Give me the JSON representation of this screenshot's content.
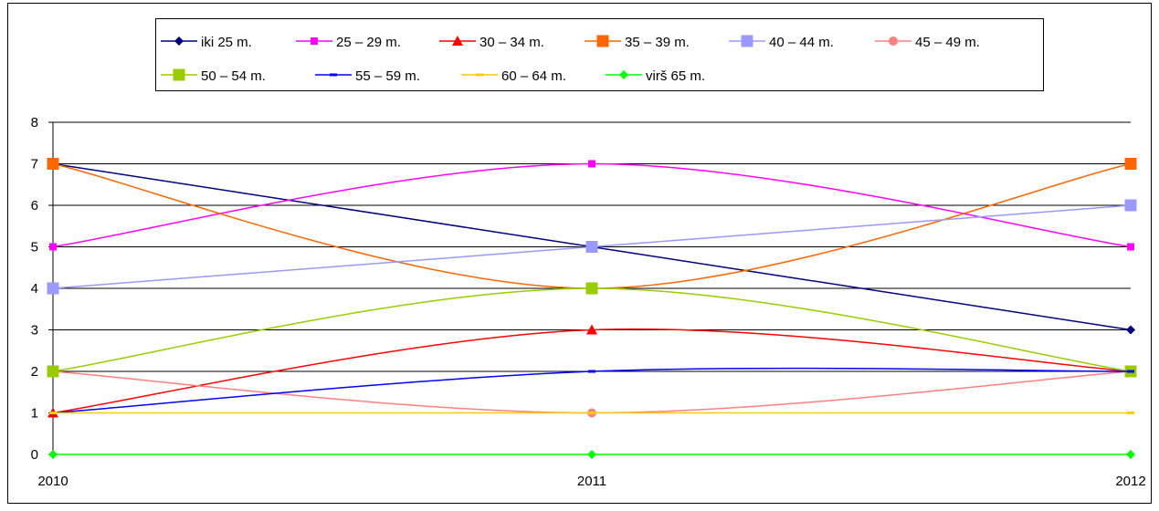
{
  "chart_data": {
    "type": "line",
    "x": [
      "2010",
      "2011",
      "2012"
    ],
    "ylim": [
      0,
      8
    ],
    "yticks": [
      "0",
      "1",
      "2",
      "3",
      "4",
      "5",
      "6",
      "7",
      "8"
    ],
    "grid": true,
    "legend_position": "top",
    "series": [
      {
        "name": "iki 25 m.",
        "values": [
          7,
          5,
          3
        ],
        "color": "#000080",
        "marker": "diamond"
      },
      {
        "name": "25 – 29 m.",
        "values": [
          5,
          7,
          5
        ],
        "color": "#ff00ff",
        "marker": "square-small"
      },
      {
        "name": "30 – 34 m.",
        "values": [
          1,
          3,
          2
        ],
        "color": "#ff0000",
        "marker": "triangle"
      },
      {
        "name": "35 – 39 m.",
        "values": [
          7,
          4,
          7
        ],
        "color": "#ff6600",
        "marker": "square"
      },
      {
        "name": "40 – 44 m.",
        "values": [
          4,
          5,
          6
        ],
        "color": "#9999ff",
        "marker": "square"
      },
      {
        "name": "45 – 49 m.",
        "values": [
          2,
          1,
          2
        ],
        "color": "#ff8080",
        "marker": "circle"
      },
      {
        "name": "50 – 54 m.",
        "values": [
          2,
          4,
          2
        ],
        "color": "#99cc00",
        "marker": "square"
      },
      {
        "name": "55 – 59 m.",
        "values": [
          1,
          2,
          2
        ],
        "color": "#0000ff",
        "marker": "dash"
      },
      {
        "name": "60 – 64 m.",
        "values": [
          1,
          1,
          1
        ],
        "color": "#ffcc00",
        "marker": "dash"
      },
      {
        "name": "virš 65 m.",
        "values": [
          0,
          0,
          0
        ],
        "color": "#00ff00",
        "marker": "diamond"
      }
    ]
  }
}
